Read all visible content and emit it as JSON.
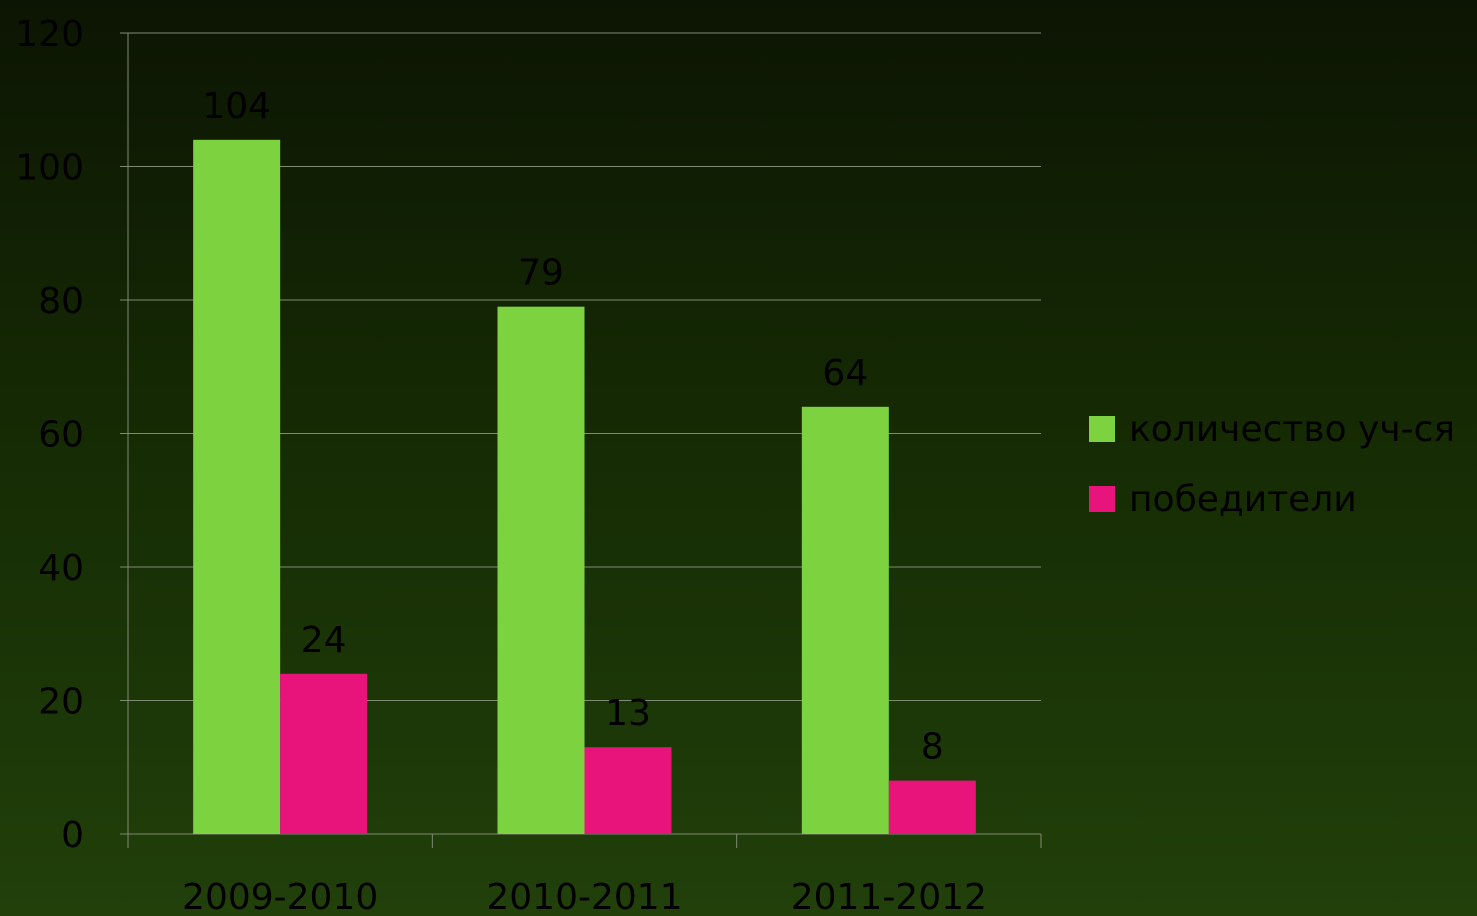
{
  "chart_data": {
    "type": "bar",
    "categories": [
      "2009-2010",
      "2010-2011",
      "2011-2012"
    ],
    "series": [
      {
        "name": "количество уч-ся",
        "values": [
          104,
          79,
          64
        ],
        "color": "#7dd33f"
      },
      {
        "name": "победители",
        "values": [
          24,
          13,
          8
        ],
        "color": "#e8147c"
      }
    ],
    "y_ticks": [
      "0",
      "20",
      "40",
      "60",
      "80",
      "100",
      "120"
    ],
    "ylim": [
      0,
      120
    ],
    "grid": true,
    "legend_position": "right",
    "data_labels": true
  }
}
